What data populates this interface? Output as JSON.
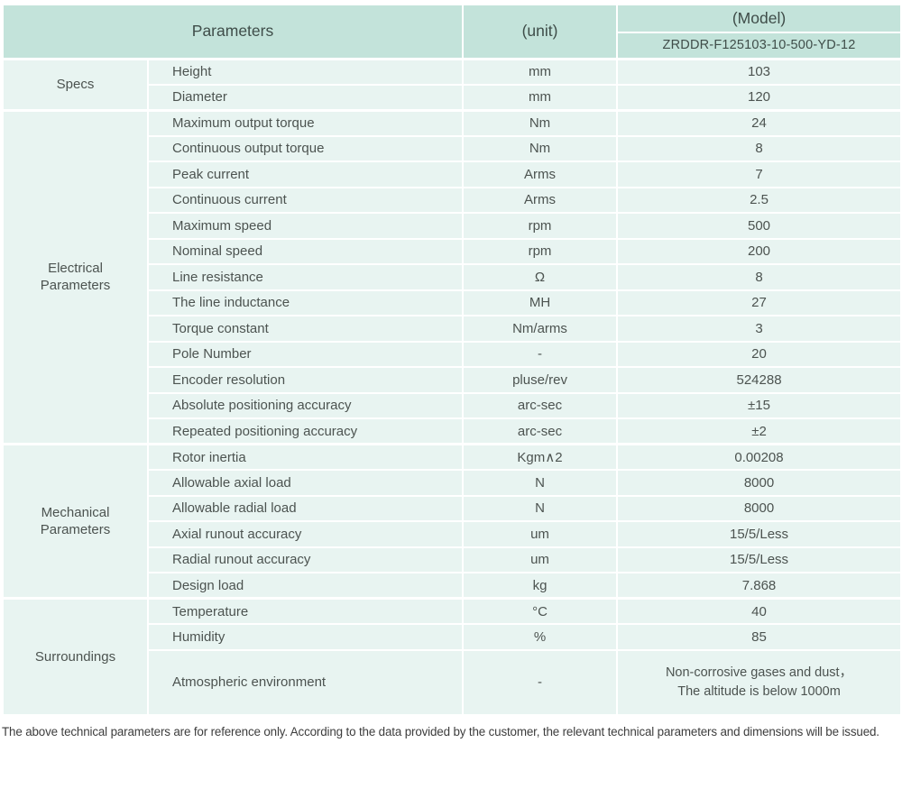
{
  "colors": {
    "header_bg": "#c3e3da",
    "row_bg": "#e8f4f1",
    "divider": "#ffffff",
    "text": "#4c5350",
    "header_text": "#3f4d49",
    "note_text": "#3d3d3d"
  },
  "table": {
    "header": {
      "parameters_label": "Parameters",
      "unit_label": "(unit)",
      "model_label": "(Model)",
      "model_value": "ZRDDR-F125103-10-500-YD-12"
    },
    "groups": [
      {
        "id": "specs",
        "label": "Specs",
        "rows": [
          {
            "param": "Height",
            "unit": "mm",
            "value": "103"
          },
          {
            "param": "Diameter",
            "unit": "mm",
            "value": "120"
          }
        ]
      },
      {
        "id": "electrical-parameters",
        "label": "Electrical\nParameters",
        "rows": [
          {
            "param": "Maximum output torque",
            "unit": "Nm",
            "value": "24"
          },
          {
            "param": "Continuous output torque",
            "unit": "Nm",
            "value": "8"
          },
          {
            "param": "Peak current",
            "unit": "Arms",
            "value": "7"
          },
          {
            "param": "Continuous current",
            "unit": "Arms",
            "value": "2.5"
          },
          {
            "param": "Maximum speed",
            "unit": "rpm",
            "value": "500"
          },
          {
            "param": "Nominal speed",
            "unit": "rpm",
            "value": "200"
          },
          {
            "param": "Line resistance",
            "unit": "Ω",
            "value": "8"
          },
          {
            "param": "The line inductance",
            "unit": "MH",
            "value": "27"
          },
          {
            "param": "Torque constant",
            "unit": "Nm/arms",
            "value": "3"
          },
          {
            "param": "Pole Number",
            "unit": "-",
            "value": "20"
          },
          {
            "param": "Encoder resolution",
            "unit": "pluse/rev",
            "value": "524288"
          },
          {
            "param": "Absolute positioning accuracy",
            "unit": "arc-sec",
            "value": "±15"
          },
          {
            "param": "Repeated positioning accuracy",
            "unit": "arc-sec",
            "value": "±2"
          }
        ]
      },
      {
        "id": "mechanical-parameters",
        "label": "Mechanical\nParameters",
        "rows": [
          {
            "param": "Rotor inertia",
            "unit": "Kgm∧2",
            "value": "0.00208"
          },
          {
            "param": "Allowable axial load",
            "unit": "N",
            "value": "8000"
          },
          {
            "param": "Allowable radial load",
            "unit": "N",
            "value": "8000"
          },
          {
            "param": "Axial runout accuracy",
            "unit": "um",
            "value": "15/5/Less"
          },
          {
            "param": "Radial runout accuracy",
            "unit": "um",
            "value": "15/5/Less"
          },
          {
            "param": "Design load",
            "unit": "kg",
            "value": "7.868"
          }
        ]
      },
      {
        "id": "surroundings",
        "label": "Surroundings",
        "rows": [
          {
            "param": "Temperature",
            "unit": "°C",
            "value": "40"
          },
          {
            "param": "Humidity",
            "unit": "%",
            "value": "85"
          },
          {
            "param": "Atmospheric environment",
            "unit": "-",
            "value": "Non-corrosive gases and dust，\nThe altitude is below 1000m"
          }
        ]
      }
    ]
  },
  "footer": {
    "note": "The above technical parameters are for reference only. According to the data provided by the customer, the relevant technical parameters and dimensions will be issued."
  }
}
